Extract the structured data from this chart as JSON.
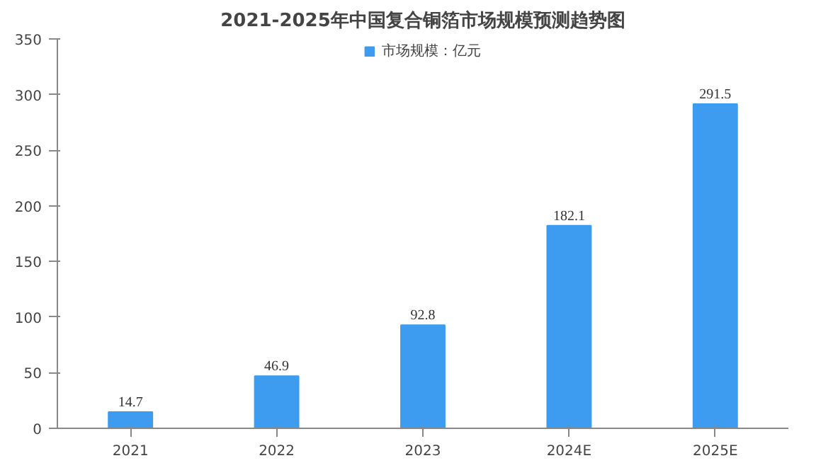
{
  "chart_data": {
    "type": "bar",
    "title": "2021-2025年中国复合铜箔市场规模预测趋势图",
    "categories": [
      "2021",
      "2022",
      "2023",
      "2024E",
      "2025E"
    ],
    "series": [
      {
        "name": "市场规模：亿元",
        "color": "#3d9cf0",
        "values": [
          14.7,
          46.9,
          92.8,
          182.1,
          291.5
        ]
      }
    ],
    "ylim": [
      0,
      350
    ],
    "yticks": [
      0,
      50,
      100,
      150,
      200,
      250,
      300,
      350
    ],
    "data_labels": true,
    "legend": "top",
    "grid": false
  }
}
